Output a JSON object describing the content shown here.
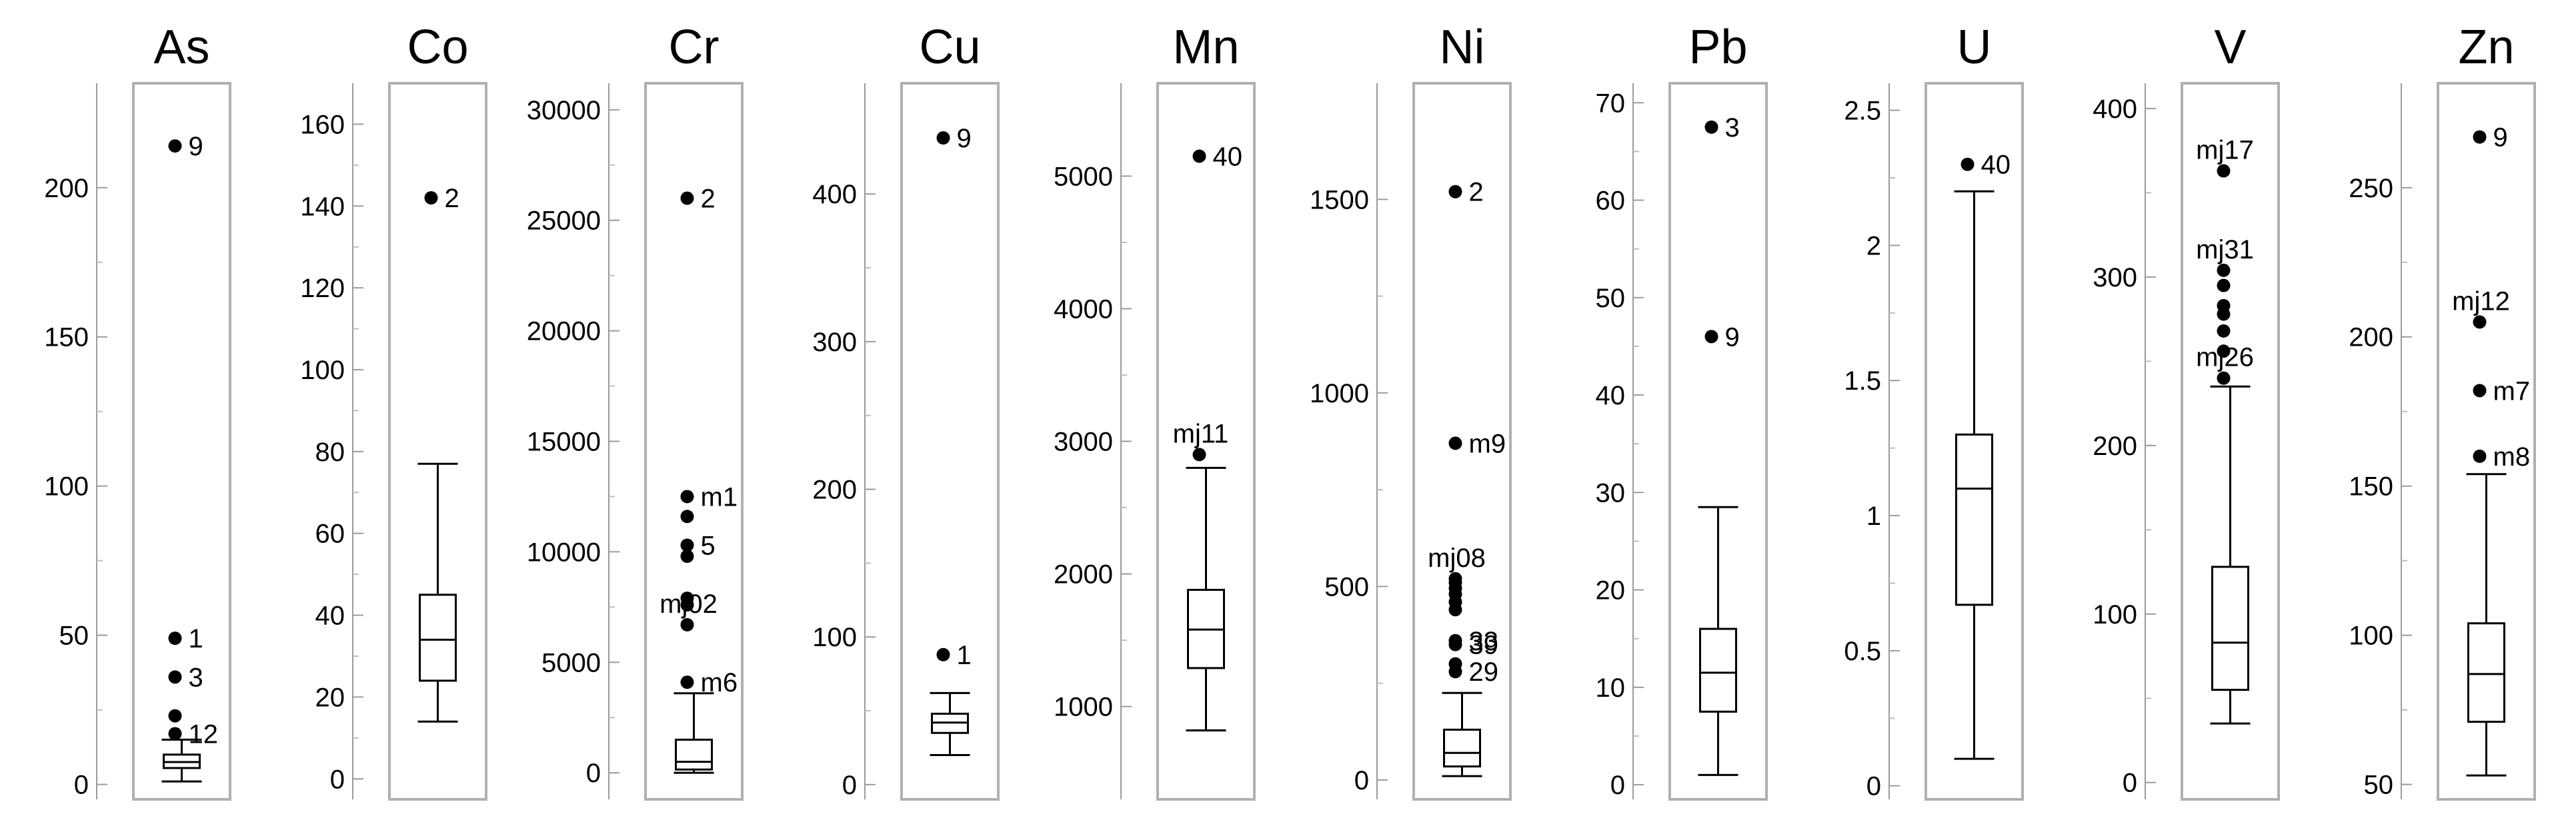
{
  "chart_data": [
    {
      "type": "box",
      "title": "As",
      "ylim": [
        -5,
        235
      ],
      "yticks": [
        0,
        50,
        100,
        150,
        200
      ],
      "box": {
        "whisker_low": 1,
        "q1": 5.5,
        "median": 7.5,
        "q3": 10,
        "whisker_high": 15
      },
      "outliers": [
        {
          "value": 214,
          "label": "9"
        },
        {
          "value": 49,
          "label": "1"
        },
        {
          "value": 36,
          "label": "3"
        },
        {
          "value": 23,
          "label": ""
        },
        {
          "value": 17,
          "label": "12"
        }
      ]
    },
    {
      "type": "box",
      "title": "Co",
      "ylim": [
        -5,
        170
      ],
      "yticks": [
        0,
        20,
        40,
        60,
        80,
        100,
        120,
        140,
        160
      ],
      "box": {
        "whisker_low": 14,
        "q1": 24,
        "median": 34,
        "q3": 45,
        "whisker_high": 77
      },
      "outliers": [
        {
          "value": 142,
          "label": "2"
        }
      ]
    },
    {
      "type": "box",
      "title": "Cr",
      "ylim": [
        -1200,
        31200
      ],
      "yticks": [
        0,
        5000,
        10000,
        15000,
        20000,
        25000,
        30000
      ],
      "box": {
        "whisker_low": 0,
        "q1": 150,
        "median": 500,
        "q3": 1500,
        "whisker_high": 3600
      },
      "outliers": [
        {
          "value": 26000,
          "label": "2"
        },
        {
          "value": 12500,
          "label": "m1"
        },
        {
          "value": 11600,
          "label": ""
        },
        {
          "value": 10300,
          "label": "5"
        },
        {
          "value": 9800,
          "label": ""
        },
        {
          "value": 7900,
          "label": ""
        },
        {
          "value": 7600,
          "label": ""
        },
        {
          "value": 6700,
          "label": "mj02"
        },
        {
          "value": 4100,
          "label": "m6"
        }
      ]
    },
    {
      "type": "box",
      "title": "Cu",
      "ylim": [
        -10,
        475
      ],
      "yticks": [
        0,
        100,
        200,
        300,
        400
      ],
      "box": {
        "whisker_low": 20,
        "q1": 35,
        "median": 42,
        "q3": 48,
        "whisker_high": 62
      },
      "outliers": [
        {
          "value": 438,
          "label": "9"
        },
        {
          "value": 88,
          "label": "1"
        }
      ]
    },
    {
      "type": "box",
      "title": "Mn",
      "ylim": [
        300,
        5700
      ],
      "yticks": [
        1000,
        2000,
        3000,
        4000,
        5000
      ],
      "box": {
        "whisker_low": 820,
        "q1": 1290,
        "median": 1580,
        "q3": 1880,
        "whisker_high": 2800
      },
      "outliers": [
        {
          "value": 5150,
          "label": "40"
        },
        {
          "value": 2900,
          "label": "mj11"
        }
      ]
    },
    {
      "type": "box",
      "title": "Ni",
      "ylim": [
        -50,
        1800
      ],
      "yticks": [
        0,
        500,
        1000,
        1500
      ],
      "box": {
        "whisker_low": 10,
        "q1": 35,
        "median": 70,
        "q3": 130,
        "whisker_high": 225
      },
      "outliers": [
        {
          "value": 1520,
          "label": "2"
        },
        {
          "value": 870,
          "label": "m9"
        },
        {
          "value": 520,
          "label": "mj08"
        },
        {
          "value": 510,
          "label": ""
        },
        {
          "value": 495,
          "label": ""
        },
        {
          "value": 480,
          "label": ""
        },
        {
          "value": 460,
          "label": ""
        },
        {
          "value": 440,
          "label": ""
        },
        {
          "value": 360,
          "label": "33"
        },
        {
          "value": 350,
          "label": "39"
        },
        {
          "value": 300,
          "label": ""
        },
        {
          "value": 280,
          "label": "29"
        }
      ]
    },
    {
      "type": "box",
      "title": "Pb",
      "ylim": [
        -1.5,
        72
      ],
      "yticks": [
        0,
        10,
        20,
        30,
        40,
        50,
        60,
        70
      ],
      "box": {
        "whisker_low": 1,
        "q1": 7.5,
        "median": 11.5,
        "q3": 16,
        "whisker_high": 28.5
      },
      "outliers": [
        {
          "value": 67.5,
          "label": "3"
        },
        {
          "value": 46,
          "label": "9"
        }
      ]
    },
    {
      "type": "box",
      "title": "U",
      "ylim": [
        -0.05,
        2.6
      ],
      "yticks": [
        0,
        0.5,
        1,
        1.5,
        2,
        2.5
      ],
      "box": {
        "whisker_low": 0.1,
        "q1": 0.67,
        "median": 1.1,
        "q3": 1.3,
        "whisker_high": 2.2
      },
      "outliers": [
        {
          "value": 2.3,
          "label": "40"
        }
      ]
    },
    {
      "type": "box",
      "title": "V",
      "ylim": [
        -10,
        415
      ],
      "yticks": [
        0,
        100,
        200,
        300,
        400
      ],
      "box": {
        "whisker_low": 35,
        "q1": 55,
        "median": 83,
        "q3": 128,
        "whisker_high": 235
      },
      "outliers": [
        {
          "value": 363,
          "label": "mj17"
        },
        {
          "value": 304,
          "label": "mj31"
        },
        {
          "value": 295,
          "label": ""
        },
        {
          "value": 283,
          "label": ""
        },
        {
          "value": 278,
          "label": ""
        },
        {
          "value": 268,
          "label": ""
        },
        {
          "value": 256,
          "label": ""
        },
        {
          "value": 240,
          "label": "mj26"
        }
      ]
    },
    {
      "type": "box",
      "title": "Zn",
      "ylim": [
        45,
        285
      ],
      "yticks": [
        50,
        100,
        150,
        200,
        250
      ],
      "box": {
        "whisker_low": 53,
        "q1": 71,
        "median": 87,
        "q3": 104,
        "whisker_high": 154
      },
      "outliers": [
        {
          "value": 267,
          "label": "9"
        },
        {
          "value": 205,
          "label": "mj12"
        },
        {
          "value": 182,
          "label": "m7"
        },
        {
          "value": 160,
          "label": "m8"
        }
      ]
    }
  ]
}
